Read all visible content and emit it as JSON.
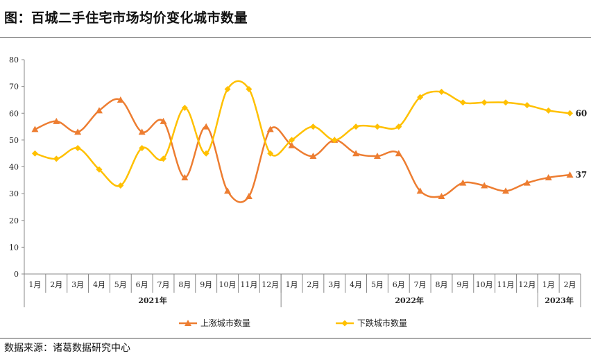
{
  "header": {
    "title": "图：百城二手住宅市场均价变化城市数量"
  },
  "footer": {
    "source": "数据来源：诸葛数据研究中心"
  },
  "chart_data": {
    "type": "line",
    "title": "",
    "xlabel": "",
    "ylabel": "",
    "ylim": [
      0,
      80
    ],
    "yticks": [
      0,
      10,
      20,
      30,
      40,
      50,
      60,
      70,
      80
    ],
    "categories": [
      "1月",
      "2月",
      "3月",
      "4月",
      "5月",
      "6月",
      "7月",
      "8月",
      "9月",
      "10月",
      "11月",
      "12月",
      "1月",
      "2月",
      "3月",
      "4月",
      "5月",
      "6月",
      "7月",
      "8月",
      "9月",
      "10月",
      "11月",
      "12月",
      "1月",
      "2月"
    ],
    "year_groups": [
      {
        "label": "2021年",
        "count": 12
      },
      {
        "label": "2022年",
        "count": 12
      },
      {
        "label": "2023年",
        "count": 2
      }
    ],
    "series": [
      {
        "name": "上涨城市数量",
        "color": "#ED7D31",
        "marker": "triangle",
        "values": [
          54,
          57,
          53,
          61,
          65,
          53,
          57,
          36,
          55,
          31,
          29,
          54,
          48,
          44,
          50,
          45,
          44,
          45,
          31,
          29,
          34,
          33,
          31,
          34,
          36,
          37
        ],
        "end_label": "37"
      },
      {
        "name": "下跌城市数量",
        "color": "#FFC000",
        "marker": "diamond",
        "values": [
          45,
          43,
          47,
          39,
          33,
          47,
          43,
          62,
          45,
          69,
          69,
          45,
          50,
          55,
          50,
          55,
          55,
          55,
          66,
          68,
          64,
          64,
          64,
          63,
          61,
          60
        ],
        "end_label": "60"
      }
    ],
    "legend_position": "bottom",
    "grid": false
  }
}
